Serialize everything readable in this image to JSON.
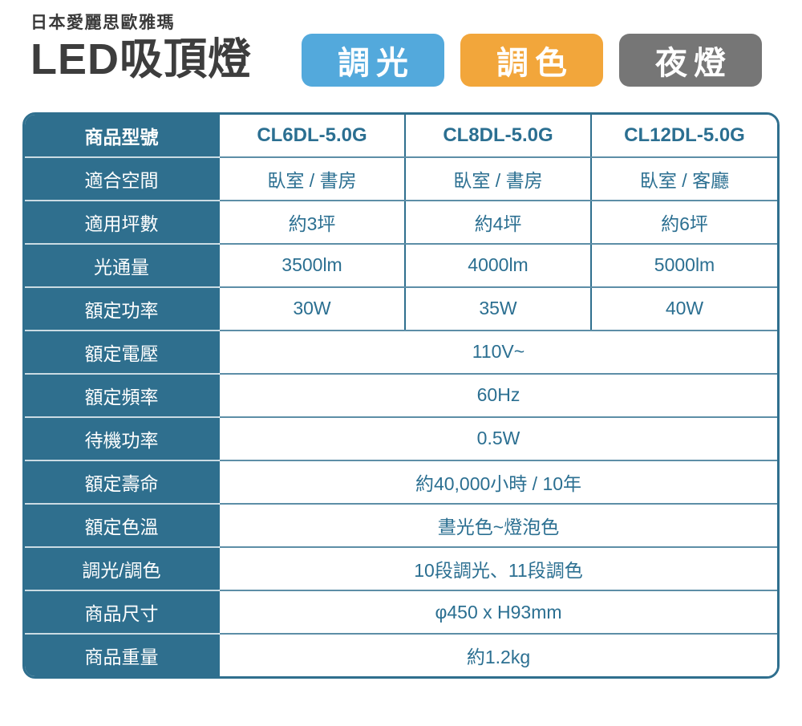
{
  "header": {
    "brand": "日本愛麗思歐雅瑪",
    "title": "LED吸頂燈",
    "badges": [
      {
        "name": "badge-dimming",
        "label": "調光",
        "color": "#53A9DC"
      },
      {
        "name": "badge-color-tuning",
        "label": "調色",
        "color": "#F2A63B"
      },
      {
        "name": "badge-night-light",
        "label": "夜燈",
        "color": "#767676"
      }
    ]
  },
  "colors": {
    "accent_teal": "#2F6F8E",
    "value_text": "#2B6F91",
    "title_text": "#3d3d3d",
    "grid_line": "#5d8ea7"
  },
  "table": {
    "rows": [
      {
        "label": "商品型號",
        "bold": true,
        "values": [
          "CL6DL-5.0G",
          "CL8DL-5.0G",
          "CL12DL-5.0G"
        ]
      },
      {
        "label": "適合空間",
        "bold": false,
        "values": [
          "臥室 / 書房",
          "臥室 / 書房",
          "臥室 / 客廳"
        ]
      },
      {
        "label": "適用坪數",
        "bold": false,
        "values": [
          "約3坪",
          "約4坪",
          "約6坪"
        ]
      },
      {
        "label": "光通量",
        "bold": false,
        "values": [
          "3500lm",
          "4000lm",
          "5000lm"
        ]
      },
      {
        "label": "額定功率",
        "bold": false,
        "values": [
          "30W",
          "35W",
          "40W"
        ]
      },
      {
        "label": "額定電壓",
        "bold": false,
        "values": [
          "110V~"
        ]
      },
      {
        "label": "額定頻率",
        "bold": false,
        "values": [
          "60Hz"
        ]
      },
      {
        "label": "待機功率",
        "bold": false,
        "values": [
          "0.5W"
        ]
      },
      {
        "label": "額定壽命",
        "bold": false,
        "values": [
          "約40,000小時 / 10年"
        ]
      },
      {
        "label": "額定色溫",
        "bold": false,
        "values": [
          "晝光色~燈泡色"
        ]
      },
      {
        "label": "調光/調色",
        "bold": false,
        "values": [
          "10段調光、11段調色"
        ]
      },
      {
        "label": "商品尺寸",
        "bold": false,
        "values": [
          "φ450 x H93mm"
        ]
      },
      {
        "label": "商品重量",
        "bold": false,
        "values": [
          "約1.2kg"
        ]
      }
    ]
  }
}
